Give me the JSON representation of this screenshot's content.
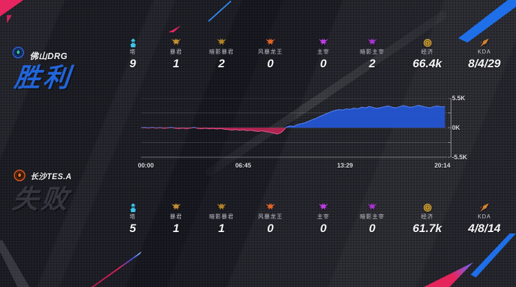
{
  "teams": [
    {
      "name": "佛山DRG",
      "result": "胜利",
      "result_color": "#2165da",
      "logo": {
        "ring": "#2e62d6",
        "bg": "#0d1d42",
        "emblem": "#35c98a"
      },
      "stats": [
        {
          "icon": "tower-icon",
          "icon_color": "#3ec3e6",
          "label": "塔",
          "value": "9"
        },
        {
          "icon": "tyrant-icon",
          "icon_color": "#c39132",
          "label": "暴君",
          "value": "1"
        },
        {
          "icon": "shadow-tyrant-icon",
          "icon_color": "#b08428",
          "label": "暗影暴君",
          "value": "2"
        },
        {
          "icon": "storm-dragon-icon",
          "icon_color": "#e0662a",
          "label": "风暴龙王",
          "value": "0"
        },
        {
          "icon": "dominator-icon",
          "icon_color": "#bb3fe0",
          "label": "主宰",
          "value": "0"
        },
        {
          "icon": "shadow-dominator-icon",
          "icon_color": "#a534cc",
          "label": "暗影主宰",
          "value": "2"
        },
        {
          "icon": "economy-icon",
          "icon_color": "#c79b3b",
          "label": "经济",
          "value": "66.4k"
        },
        {
          "icon": "kda-icon",
          "icon_color": "#d9822f",
          "label": "KDA",
          "value": "8/4/29"
        }
      ]
    },
    {
      "name": "长沙TES.A",
      "result": "失败",
      "result_color": "#35363f",
      "logo": {
        "ring": "#d4591f",
        "bg": "#240f06",
        "emblem": "#e07a30"
      },
      "stats": [
        {
          "icon": "tower-icon",
          "icon_color": "#3ec3e6",
          "label": "塔",
          "value": "5"
        },
        {
          "icon": "tyrant-icon",
          "icon_color": "#c39132",
          "label": "暴君",
          "value": "1"
        },
        {
          "icon": "shadow-tyrant-icon",
          "icon_color": "#b08428",
          "label": "暗影暴君",
          "value": "1"
        },
        {
          "icon": "storm-dragon-icon",
          "icon_color": "#e0662a",
          "label": "风暴龙王",
          "value": "0"
        },
        {
          "icon": "dominator-icon",
          "icon_color": "#bb3fe0",
          "label": "主宰",
          "value": "0"
        },
        {
          "icon": "shadow-dominator-icon",
          "icon_color": "#a534cc",
          "label": "暗影主宰",
          "value": "0"
        },
        {
          "icon": "economy-icon",
          "icon_color": "#c79b3b",
          "label": "经济",
          "value": "61.7k"
        },
        {
          "icon": "kda-icon",
          "icon_color": "#d9822f",
          "label": "KDA",
          "value": "4/8/14"
        }
      ]
    }
  ],
  "chart_data": {
    "type": "area",
    "x_ticks": [
      {
        "t": 0,
        "label": "00:00"
      },
      {
        "t": 405,
        "label": "06:45"
      },
      {
        "t": 809,
        "label": "13:29"
      },
      {
        "t": 1214,
        "label": "20:14"
      }
    ],
    "y_ticks": [
      {
        "v": 5500,
        "label": "5.5K"
      },
      {
        "v": 0,
        "label": "0K"
      },
      {
        "v": -5500,
        "label": "-5.5K"
      }
    ],
    "grid_values": [
      5500,
      2750,
      0,
      -2750,
      -5500
    ],
    "t_max": 1214,
    "ylim": [
      -5500,
      5500
    ],
    "colors": {
      "positive": "#2456d6",
      "positive_line": "#5584f2",
      "negative": "#bf2454",
      "negative_line": "#e4548a"
    },
    "series": [
      {
        "name": "gold-diff",
        "points": [
          [
            0,
            0
          ],
          [
            15,
            40
          ],
          [
            30,
            -40
          ],
          [
            45,
            60
          ],
          [
            60,
            -60
          ],
          [
            75,
            30
          ],
          [
            90,
            -90
          ],
          [
            105,
            -30
          ],
          [
            120,
            70
          ],
          [
            135,
            -80
          ],
          [
            150,
            -150
          ],
          [
            165,
            -60
          ],
          [
            180,
            -170
          ],
          [
            195,
            -70
          ],
          [
            210,
            60
          ],
          [
            225,
            -130
          ],
          [
            240,
            -190
          ],
          [
            255,
            -90
          ],
          [
            270,
            -210
          ],
          [
            285,
            -120
          ],
          [
            300,
            -250
          ],
          [
            315,
            -140
          ],
          [
            330,
            -280
          ],
          [
            345,
            -350
          ],
          [
            360,
            -430
          ],
          [
            375,
            -340
          ],
          [
            390,
            -470
          ],
          [
            405,
            -400
          ],
          [
            420,
            -540
          ],
          [
            435,
            -460
          ],
          [
            450,
            -600
          ],
          [
            465,
            -690
          ],
          [
            480,
            -580
          ],
          [
            495,
            -730
          ],
          [
            510,
            -850
          ],
          [
            525,
            -980
          ],
          [
            540,
            -1180
          ],
          [
            555,
            -920
          ],
          [
            566,
            -420
          ],
          [
            575,
            80
          ],
          [
            590,
            340
          ],
          [
            605,
            260
          ],
          [
            620,
            580
          ],
          [
            635,
            760
          ],
          [
            650,
            920
          ],
          [
            665,
            1220
          ],
          [
            680,
            1520
          ],
          [
            695,
            1780
          ],
          [
            710,
            2120
          ],
          [
            725,
            2420
          ],
          [
            740,
            2720
          ],
          [
            755,
            3020
          ],
          [
            770,
            3220
          ],
          [
            785,
            3380
          ],
          [
            800,
            3300
          ],
          [
            815,
            3520
          ],
          [
            830,
            3430
          ],
          [
            845,
            3660
          ],
          [
            860,
            3500
          ],
          [
            875,
            3820
          ],
          [
            890,
            3700
          ],
          [
            905,
            3960
          ],
          [
            920,
            3790
          ],
          [
            935,
            3600
          ],
          [
            950,
            3760
          ],
          [
            965,
            3920
          ],
          [
            980,
            4060
          ],
          [
            995,
            3840
          ],
          [
            1010,
            3700
          ],
          [
            1025,
            3910
          ],
          [
            1040,
            4120
          ],
          [
            1055,
            3940
          ],
          [
            1070,
            3800
          ],
          [
            1085,
            3960
          ],
          [
            1100,
            4160
          ],
          [
            1115,
            4000
          ],
          [
            1130,
            3840
          ],
          [
            1145,
            3700
          ],
          [
            1160,
            3920
          ],
          [
            1175,
            4060
          ],
          [
            1190,
            3900
          ],
          [
            1205,
            3940
          ]
        ]
      }
    ]
  }
}
